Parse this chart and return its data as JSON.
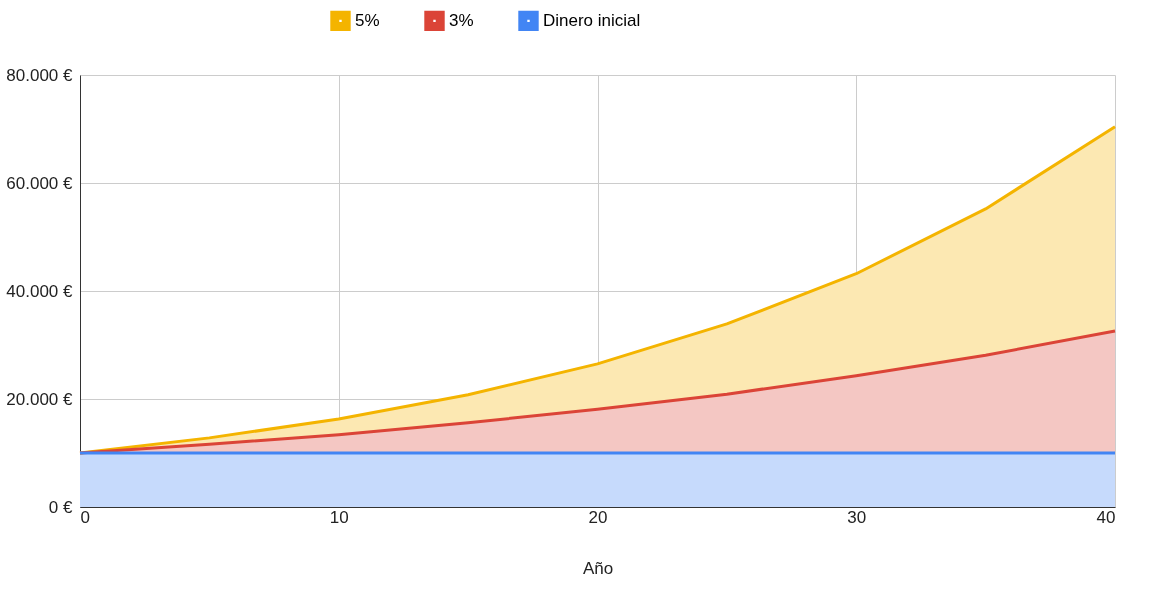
{
  "chart_data": {
    "type": "area",
    "xlabel": "Año",
    "x": [
      0,
      5,
      10,
      15,
      20,
      25,
      30,
      35,
      40
    ],
    "series": [
      {
        "name": "5%",
        "color": "#f4b400",
        "values": [
          10000,
          12800,
          16300,
          20800,
          26500,
          33900,
          43200,
          55200,
          70400
        ]
      },
      {
        "name": "3%",
        "color": "#db4437",
        "values": [
          10000,
          11600,
          13400,
          15600,
          18100,
          20900,
          24300,
          28100,
          32600
        ]
      },
      {
        "name": "Dinero inicial",
        "color": "#4285f4",
        "values": [
          10000,
          10000,
          10000,
          10000,
          10000,
          10000,
          10000,
          10000,
          10000
        ]
      }
    ],
    "xlim": [
      0,
      40
    ],
    "xticks": [
      0,
      10,
      20,
      30,
      40
    ],
    "ylim": [
      0,
      80000
    ],
    "yticks": [
      {
        "value": 0,
        "label": "0 €"
      },
      {
        "value": 20000,
        "label": "20.000 €"
      },
      {
        "value": 40000,
        "label": "40.000 €"
      },
      {
        "value": 60000,
        "label": "60.000 €"
      },
      {
        "value": 80000,
        "label": "80.000 €"
      }
    ],
    "grid": true,
    "legend": "top"
  }
}
